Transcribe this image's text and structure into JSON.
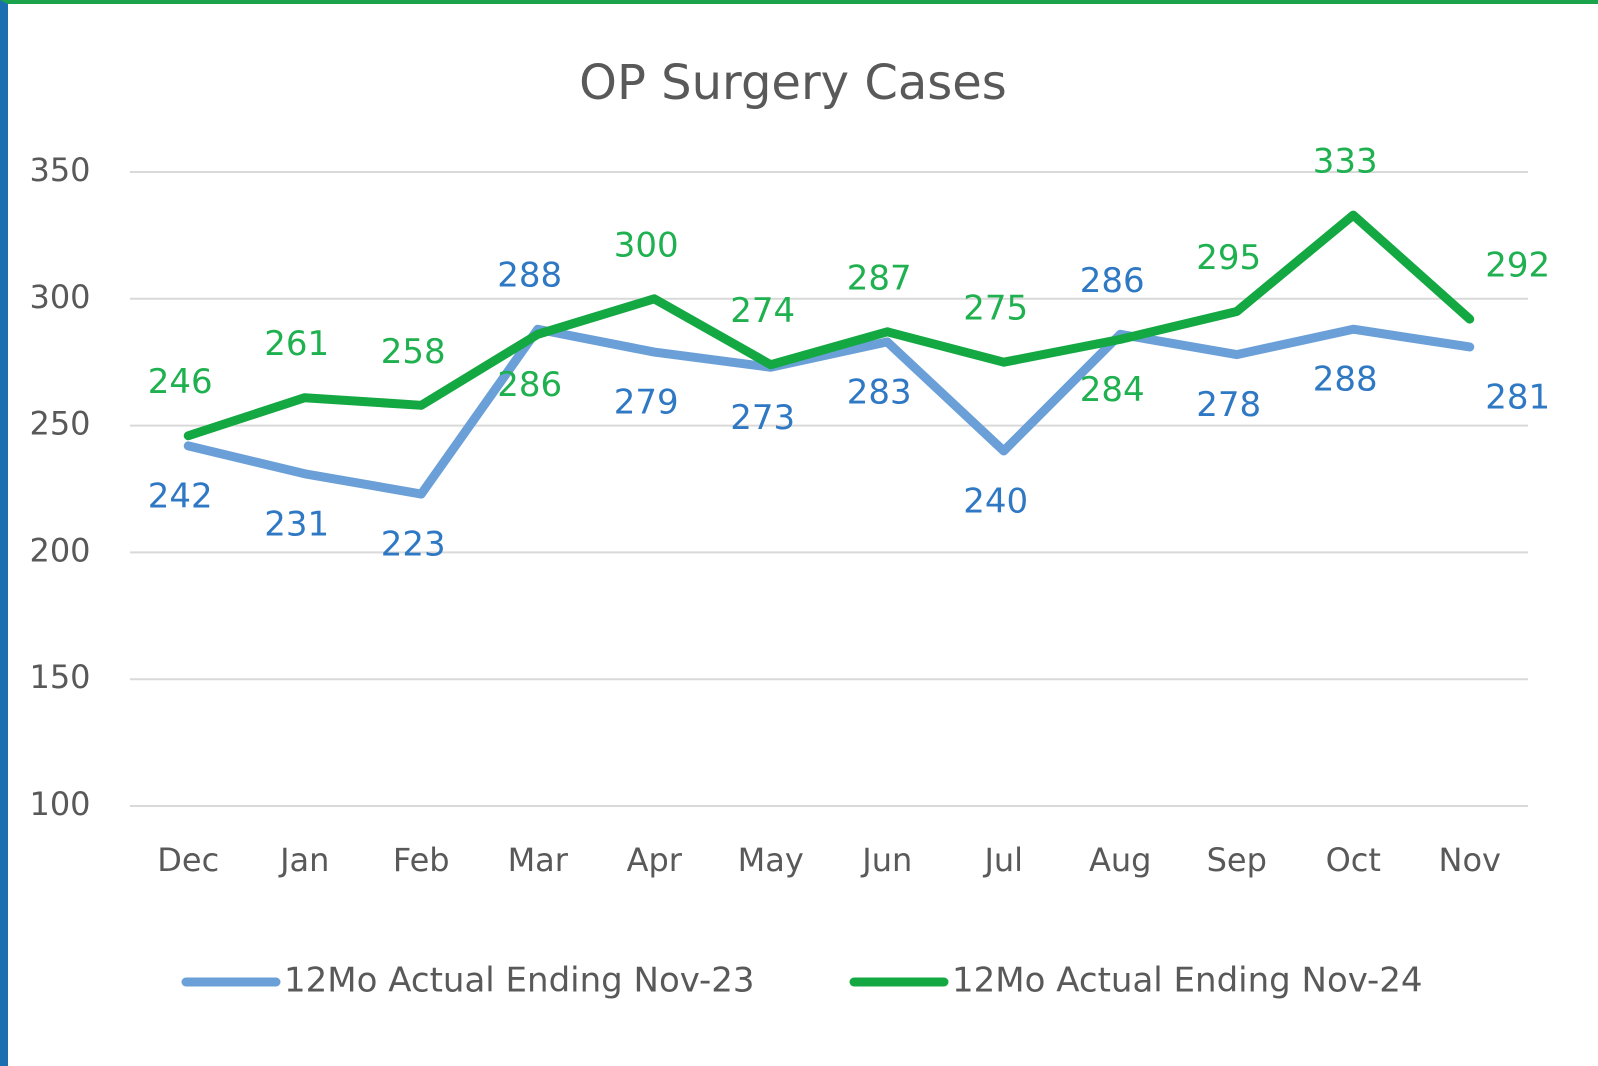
{
  "chart_data": {
    "type": "line",
    "title": "OP Surgery Cases",
    "categories": [
      "Dec",
      "Jan",
      "Feb",
      "Mar",
      "Apr",
      "May",
      "Jun",
      "Jul",
      "Aug",
      "Sep",
      "Oct",
      "Nov"
    ],
    "series": [
      {
        "name": "12Mo Actual Ending Nov-23",
        "color": "#6a9fd8",
        "label_color": "#2f78c4",
        "values": [
          242,
          231,
          223,
          288,
          279,
          273,
          283,
          240,
          286,
          278,
          288,
          281
        ]
      },
      {
        "name": "12Mo Actual Ending Nov-24",
        "color": "#14a843",
        "label_color": "#1fb04f",
        "values": [
          246,
          261,
          258,
          286,
          300,
          274,
          287,
          275,
          284,
          295,
          333,
          292
        ]
      }
    ],
    "ylim": [
      100,
      350
    ],
    "yticks": [
      100,
      150,
      200,
      250,
      300,
      350
    ],
    "grid": true,
    "legend": "bottom"
  }
}
